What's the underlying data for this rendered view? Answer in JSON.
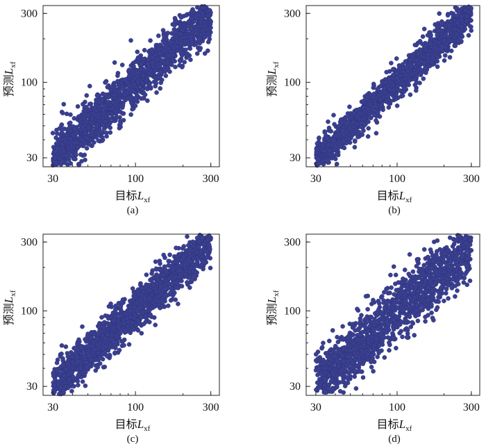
{
  "colors": {
    "marker": "#3a3f8f",
    "marker_edge": "#2c3178"
  },
  "chart_data": [
    {
      "type": "scatter",
      "panel_label": "(a)",
      "xlabel": "目标",
      "ylabel": "预测",
      "axis_var": "L",
      "axis_sub": "xf",
      "scale": "log",
      "xlim": [
        26,
        340
      ],
      "ylim": [
        26,
        340
      ],
      "xticks": [
        30,
        100,
        300
      ],
      "yticks": [
        30,
        100,
        300
      ],
      "tick_labels": [
        "30",
        "100",
        "300"
      ],
      "n_points": 1500,
      "spread": 0.085,
      "seed": 11,
      "trend": {
        "slope": 1.0,
        "intercept": 0.0
      }
    },
    {
      "type": "scatter",
      "panel_label": "(b)",
      "xlabel": "目标",
      "ylabel": "预测",
      "axis_var": "L",
      "axis_sub": "xf",
      "scale": "log",
      "xlim": [
        26,
        340
      ],
      "ylim": [
        26,
        340
      ],
      "xticks": [
        30,
        100,
        300
      ],
      "yticks": [
        30,
        100,
        300
      ],
      "tick_labels": [
        "30",
        "100",
        "300"
      ],
      "n_points": 1500,
      "spread": 0.06,
      "seed": 23,
      "trend": {
        "slope": 1.0,
        "intercept": 0.0
      }
    },
    {
      "type": "scatter",
      "panel_label": "(c)",
      "xlabel": "目标",
      "ylabel": "预测",
      "axis_var": "L",
      "axis_sub": "xf",
      "scale": "log",
      "xlim": [
        26,
        340
      ],
      "ylim": [
        26,
        340
      ],
      "xticks": [
        30,
        100,
        300
      ],
      "yticks": [
        30,
        100,
        300
      ],
      "tick_labels": [
        "30",
        "100",
        "300"
      ],
      "n_points": 1500,
      "spread": 0.075,
      "seed": 37,
      "trend": {
        "slope": 1.0,
        "intercept": 0.0
      }
    },
    {
      "type": "scatter",
      "panel_label": "(d)",
      "xlabel": "目标",
      "ylabel": "预测",
      "axis_var": "L",
      "axis_sub": "xf",
      "scale": "log",
      "xlim": [
        26,
        340
      ],
      "ylim": [
        26,
        340
      ],
      "xticks": [
        30,
        100,
        300
      ],
      "yticks": [
        30,
        100,
        300
      ],
      "tick_labels": [
        "30",
        "100",
        "300"
      ],
      "n_points": 1500,
      "spread": 0.105,
      "seed": 53,
      "trend": {
        "slope": 1.0,
        "intercept": 0.0
      }
    }
  ]
}
